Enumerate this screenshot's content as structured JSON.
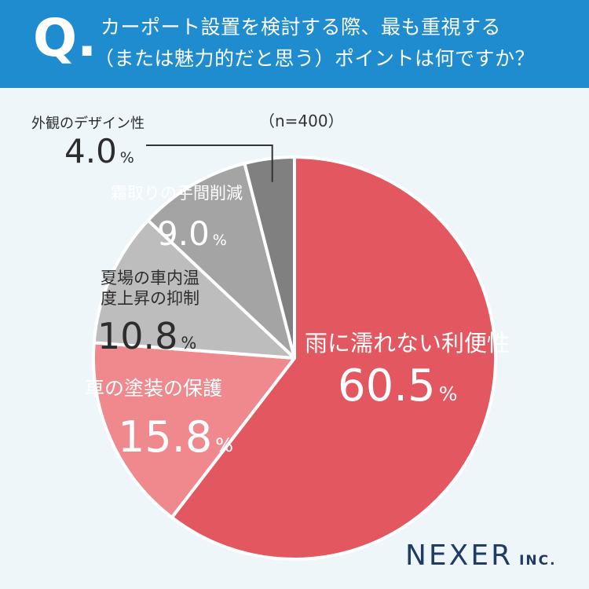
{
  "header": {
    "q_mark": "Q.",
    "question_line1": "カーポート設置を検討する際、最も重視する",
    "question_line2": "（または魅力的だと思う）ポイントは何ですか？"
  },
  "sample": "（n=400）",
  "brand": {
    "name": "NEXER",
    "suffix": "INC."
  },
  "colors": {
    "header_bg": "#1e8ccf",
    "slice_1": "#e35760",
    "slice_2": "#ef898d",
    "slice_3": "#bebdbd",
    "slice_4": "#a5a4a4",
    "slice_5": "#808080"
  },
  "chart_data": {
    "type": "pie",
    "title": "",
    "n": 400,
    "unit": "%",
    "slices": [
      {
        "label": "雨に濡れない利便性",
        "value": 60.5,
        "display": "60.5"
      },
      {
        "label": "車の塗装の保護",
        "value": 15.8,
        "display": "15.8"
      },
      {
        "label": "夏場の車内温度上昇の抑制",
        "value": 10.8,
        "display": "10.8"
      },
      {
        "label": "霜取りの手間削減",
        "value": 9.0,
        "display": "9.0"
      },
      {
        "label": "外観のデザイン性",
        "value": 4.0,
        "display": "4.0"
      }
    ]
  }
}
